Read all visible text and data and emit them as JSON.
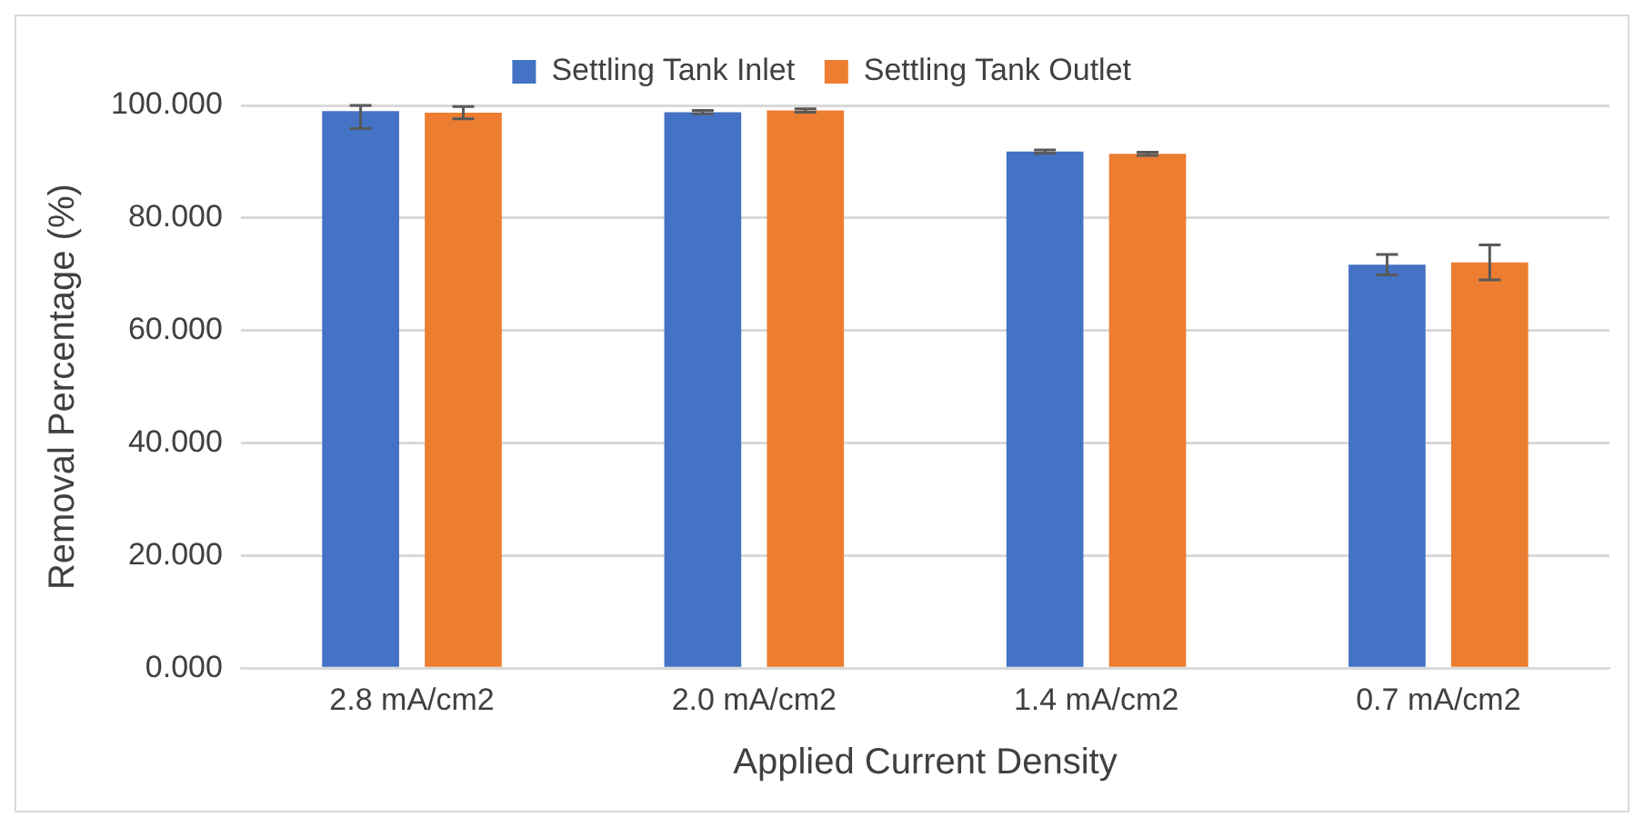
{
  "chart_data": {
    "type": "bar",
    "xlabel": "Applied Current Density",
    "ylabel": "Removal Percentage (%)",
    "categories": [
      "2.8 mA/cm2",
      "2.0 mA/cm2",
      "1.4 mA/cm2",
      "0.7 mA/cm2"
    ],
    "series": [
      {
        "name": "Settling Tank Inlet",
        "color": "#4472c4",
        "values": [
          99.0,
          98.8,
          91.8,
          71.7
        ],
        "errors": [
          [
            95.9,
            100
          ],
          0.3,
          0.3,
          1.8
        ]
      },
      {
        "name": "Settling Tank Outlet",
        "color": "#ed7d31",
        "values": [
          98.7,
          99.1,
          91.4,
          72.1
        ],
        "errors": [
          1.1,
          0.3,
          0.3,
          3.1
        ]
      }
    ],
    "ylim": [
      0,
      100
    ],
    "yticks": [
      {
        "value": 0,
        "label": "0.000"
      },
      {
        "value": 20,
        "label": "20.000"
      },
      {
        "value": 40,
        "label": "40.000"
      },
      {
        "value": 60,
        "label": "60.000"
      },
      {
        "value": 80,
        "label": "80.000"
      },
      {
        "value": 100,
        "label": "100.000"
      }
    ],
    "grid": "y",
    "legend": "top"
  }
}
